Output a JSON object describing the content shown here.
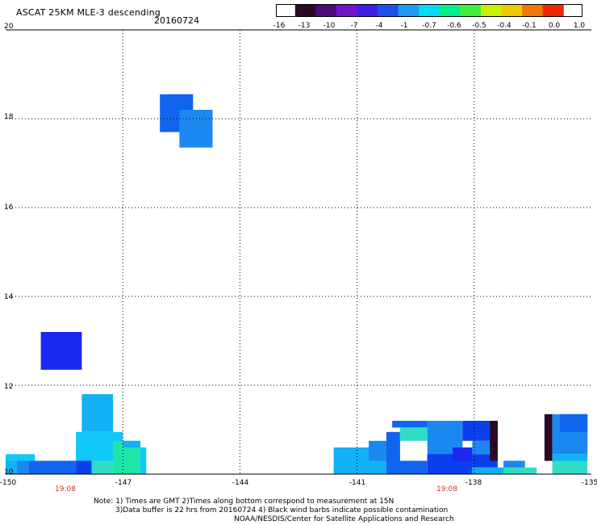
{
  "title": "ASCAT 25KM MLE-3 descending",
  "date": "20160724",
  "colorbar": {
    "labels": [
      "-16",
      "-13",
      "-10",
      "-7",
      "-4",
      "-1",
      "-0.7",
      "-0.6",
      "-0.5",
      "-0.4",
      "-0.1",
      "0.0",
      "1.0"
    ],
    "colors": [
      "#2a0a24",
      "#4b0a7a",
      "#6e16c8",
      "#3c1ee8",
      "#1e50f0",
      "#1e9af2",
      "#00dcf0",
      "#00f08c",
      "#3cf03c",
      "#c8f000",
      "#f0c800",
      "#f07800",
      "#f02800"
    ]
  },
  "axes": {
    "y_ticks": [
      "20",
      "18",
      "16",
      "14",
      "12",
      "10"
    ],
    "x_ticks": [
      "-150",
      "-147",
      "-144",
      "-141",
      "-138",
      "-135"
    ]
  },
  "chart_data": {
    "type": "heatmap",
    "xlim": [
      -150,
      -135
    ],
    "ylim": [
      10,
      20
    ],
    "grid": true,
    "cell_size_deg": [
      0.25,
      0.25
    ],
    "colormap": {
      "a": "#0a40ee",
      "b": "#1064ee",
      "c": "#1a88f0",
      "d": "#12b0f5",
      "e": "#10c8f8",
      "f": "#30dcc8",
      "g": "#1de6a8",
      "h": "#1a28f0",
      "k": "#2a0a24"
    },
    "blocks": [
      {
        "lon_min": -146.05,
        "lon_max": -145.2,
        "lat_min": 17.7,
        "lat_max": 18.55,
        "code": "b"
      },
      {
        "lon_min": -145.55,
        "lon_max": -144.7,
        "lat_min": 17.35,
        "lat_max": 18.2,
        "code": "c"
      },
      {
        "lon_min": -149.1,
        "lon_max": -148.05,
        "lat_min": 12.35,
        "lat_max": 13.2,
        "code": "h"
      },
      {
        "lon_min": -148.05,
        "lon_max": -147.25,
        "lat_min": 10.95,
        "lat_max": 11.8,
        "code": "d"
      },
      {
        "lon_min": -148.2,
        "lon_max": -147.0,
        "lat_min": 10.3,
        "lat_max": 10.95,
        "code": "e"
      },
      {
        "lon_min": -147.25,
        "lon_max": -146.55,
        "lat_min": 10.0,
        "lat_max": 10.75,
        "code": "g"
      },
      {
        "lon_min": -146.55,
        "lon_max": -146.4,
        "lat_min": 10.0,
        "lat_max": 10.6,
        "code": "e"
      },
      {
        "lon_min": -147.0,
        "lon_max": -146.55,
        "lat_min": 10.6,
        "lat_max": 10.75,
        "code": "d"
      },
      {
        "lon_min": -150.0,
        "lon_max": -149.25,
        "lat_min": 10.3,
        "lat_max": 10.45,
        "code": "e"
      },
      {
        "lon_min": -150.0,
        "lon_max": -149.7,
        "lat_min": 10.0,
        "lat_max": 10.3,
        "code": "d"
      },
      {
        "lon_min": -149.7,
        "lon_max": -149.4,
        "lat_min": 10.0,
        "lat_max": 10.3,
        "code": "c"
      },
      {
        "lon_min": -149.4,
        "lon_max": -148.2,
        "lat_min": 10.0,
        "lat_max": 10.3,
        "code": "b"
      },
      {
        "lon_min": -148.2,
        "lon_max": -147.8,
        "lat_min": 10.0,
        "lat_max": 10.3,
        "code": "a"
      },
      {
        "lon_min": -147.8,
        "lon_max": -147.25,
        "lat_min": 10.0,
        "lat_max": 10.3,
        "code": "f"
      },
      {
        "lon_min": -141.6,
        "lon_max": -140.25,
        "lat_min": 10.0,
        "lat_max": 10.6,
        "code": "d"
      },
      {
        "lon_min": -140.7,
        "lon_max": -139.9,
        "lat_min": 10.3,
        "lat_max": 10.75,
        "code": "c"
      },
      {
        "lon_min": -140.25,
        "lon_max": -139.2,
        "lat_min": 10.0,
        "lat_max": 10.3,
        "code": "b"
      },
      {
        "lon_min": -140.1,
        "lon_max": -139.2,
        "lat_min": 11.05,
        "lat_max": 11.2,
        "code": "b"
      },
      {
        "lon_min": -139.9,
        "lon_max": -139.2,
        "lat_min": 10.75,
        "lat_max": 11.05,
        "code": "f"
      },
      {
        "lon_min": -140.25,
        "lon_max": -139.9,
        "lat_min": 10.3,
        "lat_max": 10.95,
        "code": "b"
      },
      {
        "lon_min": -139.2,
        "lon_max": -138.3,
        "lat_min": 10.3,
        "lat_max": 11.2,
        "code": "c"
      },
      {
        "lon_min": -139.2,
        "lon_max": -138.05,
        "lat_min": 10.0,
        "lat_max": 10.45,
        "code": "a"
      },
      {
        "lon_min": -138.55,
        "lon_max": -138.05,
        "lat_min": 10.3,
        "lat_max": 10.6,
        "code": "h"
      },
      {
        "lon_min": -138.3,
        "lon_max": -137.4,
        "lat_min": 10.75,
        "lat_max": 11.2,
        "code": "a"
      },
      {
        "lon_min": -138.05,
        "lon_max": -137.4,
        "lat_min": 10.45,
        "lat_max": 10.75,
        "code": "c"
      },
      {
        "lon_min": -138.05,
        "lon_max": -137.4,
        "lat_min": 10.15,
        "lat_max": 10.45,
        "code": "a"
      },
      {
        "lon_min": -137.6,
        "lon_max": -137.4,
        "lat_min": 10.3,
        "lat_max": 11.2,
        "code": "k"
      },
      {
        "lon_min": -138.05,
        "lon_max": -137.25,
        "lat_min": 10.0,
        "lat_max": 10.15,
        "code": "d"
      },
      {
        "lon_min": -137.25,
        "lon_max": -136.4,
        "lat_min": 10.0,
        "lat_max": 10.15,
        "code": "f"
      },
      {
        "lon_min": -137.25,
        "lon_max": -136.7,
        "lat_min": 10.15,
        "lat_max": 10.3,
        "code": "c"
      },
      {
        "lon_min": -136.2,
        "lon_max": -136.0,
        "lat_min": 10.3,
        "lat_max": 11.35,
        "code": "k"
      },
      {
        "lon_min": -136.0,
        "lon_max": -135.1,
        "lat_min": 10.45,
        "lat_max": 11.35,
        "code": "c"
      },
      {
        "lon_min": -135.8,
        "lon_max": -135.1,
        "lat_min": 10.95,
        "lat_max": 11.35,
        "code": "b"
      },
      {
        "lon_min": -136.0,
        "lon_max": -135.1,
        "lat_min": 10.0,
        "lat_max": 10.3,
        "code": "f"
      },
      {
        "lon_min": -136.0,
        "lon_max": -135.1,
        "lat_min": 10.3,
        "lat_max": 10.45,
        "code": "d"
      }
    ]
  },
  "time_labels": [
    "19:08",
    "19:08"
  ],
  "notes": [
    "Note: 1) Times are GMT 2)Times along bottom correspond to measurement at 15N",
    "3)Data buffer is 22 hrs from 20160724 4) Black wind barbs indicate possible contamination",
    "NOAA/NESDIS/Center for Satellite Applications and Research"
  ]
}
